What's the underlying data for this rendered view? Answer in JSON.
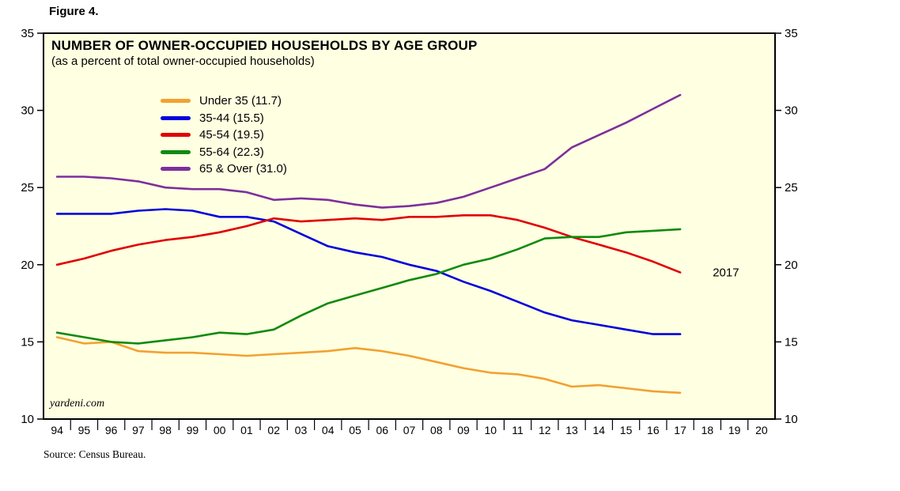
{
  "figure_label": "Figure 4.",
  "source_note": "Source: Census Bureau.",
  "watermark": "yardeni.com",
  "chart_data": {
    "type": "line",
    "title": "NUMBER OF OWNER-OCCUPIED HOUSEHOLDS BY AGE GROUP",
    "subtitle": "(as a percent of total owner-occupied households)",
    "plot_bg": "#ffffe1",
    "grid": false,
    "legend_position": "upper-left-inside",
    "ylim": [
      10,
      35
    ],
    "y_ticks": [
      10,
      15,
      20,
      25,
      30,
      35
    ],
    "x_range": [
      1993.5,
      2020.5
    ],
    "x_tick_start_year": 1994,
    "x_tick_labels": [
      "94",
      "95",
      "96",
      "97",
      "98",
      "99",
      "00",
      "01",
      "02",
      "03",
      "04",
      "05",
      "06",
      "07",
      "08",
      "09",
      "10",
      "11",
      "12",
      "13",
      "14",
      "15",
      "16",
      "17",
      "18",
      "19",
      "20"
    ],
    "x": [
      1994,
      1995,
      1996,
      1997,
      1998,
      1999,
      2000,
      2001,
      2002,
      2003,
      2004,
      2005,
      2006,
      2007,
      2008,
      2009,
      2010,
      2011,
      2012,
      2013,
      2014,
      2015,
      2016,
      2017
    ],
    "series": [
      {
        "name": "Under 35 (11.7)",
        "color": "#f2a130",
        "values": [
          15.3,
          14.9,
          15.0,
          14.4,
          14.3,
          14.3,
          14.2,
          14.1,
          14.2,
          14.3,
          14.4,
          14.6,
          14.4,
          14.1,
          13.7,
          13.3,
          13.0,
          12.9,
          12.6,
          12.1,
          12.2,
          12.0,
          11.8,
          11.7
        ]
      },
      {
        "name": "35-44 (15.5)",
        "color": "#0000dd",
        "values": [
          23.3,
          23.3,
          23.3,
          23.5,
          23.6,
          23.5,
          23.1,
          23.1,
          22.8,
          22.0,
          21.2,
          20.8,
          20.5,
          20.0,
          19.6,
          18.9,
          18.3,
          17.6,
          16.9,
          16.4,
          16.1,
          15.8,
          15.5,
          15.5
        ]
      },
      {
        "name": "45-54 (19.5)",
        "color": "#e00000",
        "values": [
          20.0,
          20.4,
          20.9,
          21.3,
          21.6,
          21.8,
          22.1,
          22.5,
          23.0,
          22.8,
          22.9,
          23.0,
          22.9,
          23.1,
          23.1,
          23.2,
          23.2,
          22.9,
          22.4,
          21.8,
          21.3,
          20.8,
          20.2,
          19.5
        ]
      },
      {
        "name": "55-64 (22.3)",
        "color": "#0f8a0f",
        "values": [
          15.6,
          15.3,
          15.0,
          14.9,
          15.1,
          15.3,
          15.6,
          15.5,
          15.8,
          16.7,
          17.5,
          18.0,
          18.5,
          19.0,
          19.4,
          20.0,
          20.4,
          21.0,
          21.7,
          21.8,
          21.8,
          22.1,
          22.2,
          22.3
        ]
      },
      {
        "name": "65 & Over (31.0)",
        "color": "#7d2f9d",
        "values": [
          25.7,
          25.7,
          25.6,
          25.4,
          25.0,
          24.9,
          24.9,
          24.7,
          24.2,
          24.3,
          24.2,
          23.9,
          23.7,
          23.8,
          24.0,
          24.4,
          25.0,
          25.6,
          26.2,
          27.6,
          28.4,
          29.2,
          30.1,
          31.0
        ]
      }
    ],
    "annotation": {
      "text": "2017",
      "x": 2018.2,
      "y": 19.5,
      "color": "#e00000"
    }
  }
}
